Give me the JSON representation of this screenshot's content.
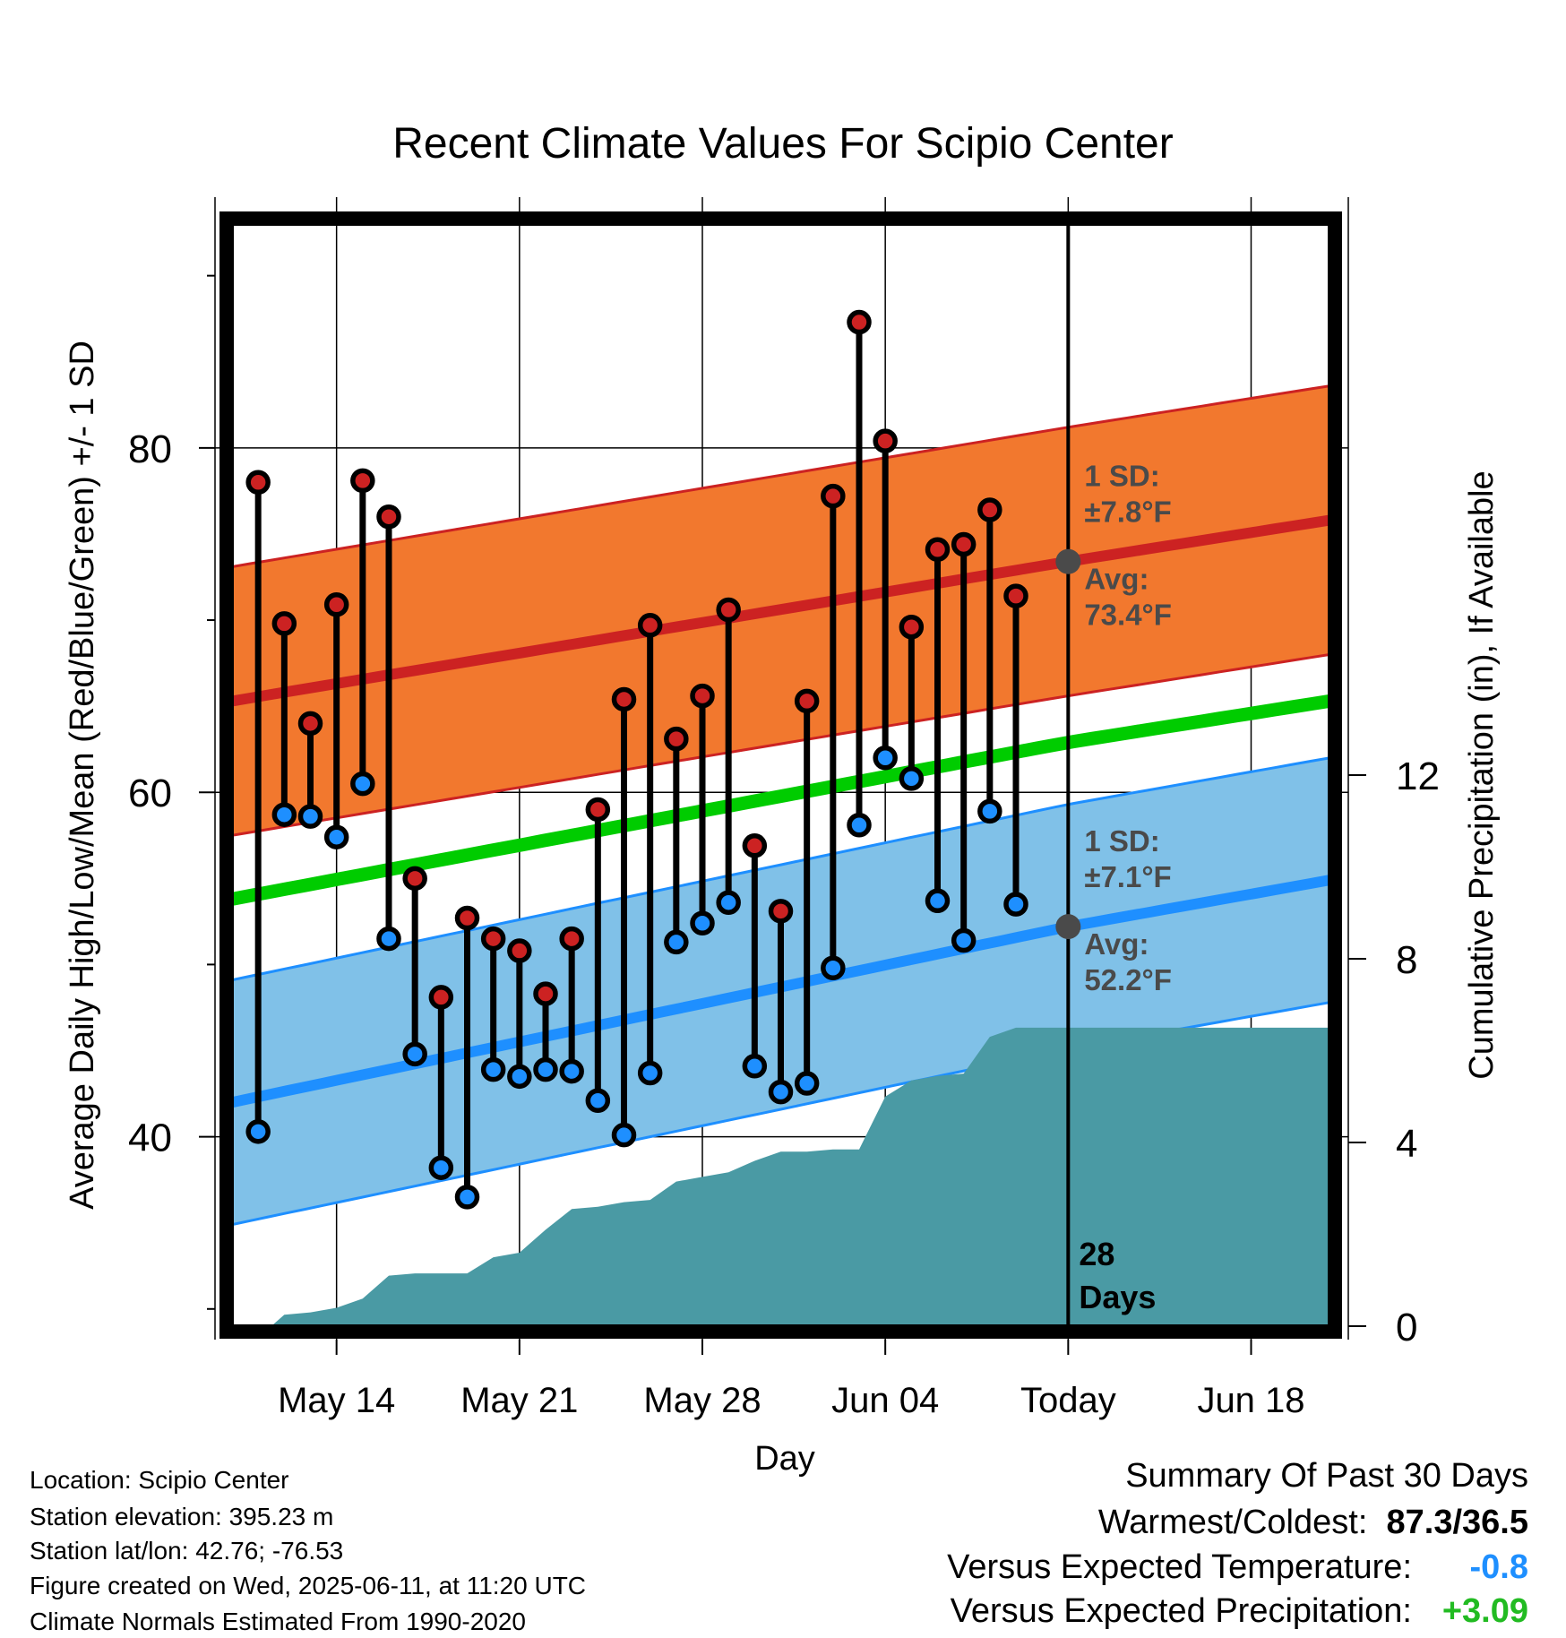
{
  "chart_data": {
    "type": "line",
    "title": "Recent Climate Values For Scipio Center",
    "xlabel": "Day",
    "ylabel": "Average Daily High/Low/Mean (Red/Blue/Green) +/- 1 SD",
    "y2label": "Cumulative Precipitation (in), If Available",
    "x_range": [
      "2025-05-10",
      "2025-06-21"
    ],
    "ylim": [
      29,
      93
    ],
    "y2lim": [
      0,
      24
    ],
    "yticks": [
      40,
      60,
      80
    ],
    "y2ticks": [
      0,
      4,
      8,
      12
    ],
    "xtick_dates": [
      "2025-05-14",
      "2025-05-21",
      "2025-05-28",
      "2025-06-04",
      "2025-06-11",
      "2025-06-18"
    ],
    "xtick_labels": [
      "May 14",
      "May 21",
      "May 28",
      "Jun 04",
      "Today",
      "Jun 18"
    ],
    "today_date": "2025-06-11",
    "today_label": "28\nDays",
    "normals": {
      "high_mean": [
        {
          "x": "2025-05-10",
          "y": 65.3
        },
        {
          "x": "2025-06-11",
          "y": 73.4
        },
        {
          "x": "2025-06-21",
          "y": 75.8
        }
      ],
      "high_sd": 7.8,
      "low_mean": [
        {
          "x": "2025-05-10",
          "y": 42.0
        },
        {
          "x": "2025-06-11",
          "y": 52.2
        },
        {
          "x": "2025-06-21",
          "y": 54.9
        }
      ],
      "low_sd": 7.1,
      "mean": [
        {
          "x": "2025-05-10",
          "y": 53.8
        },
        {
          "x": "2025-06-11",
          "y": 62.9
        },
        {
          "x": "2025-06-21",
          "y": 65.3
        }
      ]
    },
    "annotations": {
      "high": {
        "sd_label": "1 SD:",
        "sd_value": "±7.8°F",
        "avg_label": "Avg:",
        "avg_value": "73.4°F"
      },
      "low": {
        "sd_label": "1 SD:",
        "sd_value": "±7.1°F",
        "avg_label": "Avg:",
        "avg_value": "52.2°F"
      }
    },
    "series": [
      {
        "name": "High",
        "color": "#cc2222",
        "points": [
          {
            "x": "2025-05-11",
            "y": 78.0
          },
          {
            "x": "2025-05-12",
            "y": 69.8
          },
          {
            "x": "2025-05-13",
            "y": 64.0
          },
          {
            "x": "2025-05-14",
            "y": 70.9
          },
          {
            "x": "2025-05-15",
            "y": 78.1
          },
          {
            "x": "2025-05-16",
            "y": 76.0
          },
          {
            "x": "2025-05-17",
            "y": 55.0
          },
          {
            "x": "2025-05-18",
            "y": 48.1
          },
          {
            "x": "2025-05-19",
            "y": 52.7
          },
          {
            "x": "2025-05-20",
            "y": 51.5
          },
          {
            "x": "2025-05-21",
            "y": 50.8
          },
          {
            "x": "2025-05-22",
            "y": 48.3
          },
          {
            "x": "2025-05-23",
            "y": 51.5
          },
          {
            "x": "2025-05-24",
            "y": 59.0
          },
          {
            "x": "2025-05-25",
            "y": 65.4
          },
          {
            "x": "2025-05-26",
            "y": 69.7
          },
          {
            "x": "2025-05-27",
            "y": 63.1
          },
          {
            "x": "2025-05-28",
            "y": 65.6
          },
          {
            "x": "2025-05-29",
            "y": 70.6
          },
          {
            "x": "2025-05-30",
            "y": 56.9
          },
          {
            "x": "2025-05-31",
            "y": 53.1
          },
          {
            "x": "2025-06-01",
            "y": 65.3
          },
          {
            "x": "2025-06-02",
            "y": 77.2
          },
          {
            "x": "2025-06-03",
            "y": 87.3
          },
          {
            "x": "2025-06-04",
            "y": 80.4
          },
          {
            "x": "2025-06-05",
            "y": 69.6
          },
          {
            "x": "2025-06-06",
            "y": 74.1
          },
          {
            "x": "2025-06-07",
            "y": 74.4
          },
          {
            "x": "2025-06-08",
            "y": 76.4
          },
          {
            "x": "2025-06-09",
            "y": 71.4
          }
        ]
      },
      {
        "name": "Low",
        "color": "#1e8fff",
        "points": [
          {
            "x": "2025-05-11",
            "y": 40.3
          },
          {
            "x": "2025-05-12",
            "y": 58.7
          },
          {
            "x": "2025-05-13",
            "y": 58.6
          },
          {
            "x": "2025-05-14",
            "y": 57.4
          },
          {
            "x": "2025-05-15",
            "y": 60.5
          },
          {
            "x": "2025-05-16",
            "y": 51.5
          },
          {
            "x": "2025-05-17",
            "y": 44.8
          },
          {
            "x": "2025-05-18",
            "y": 38.2
          },
          {
            "x": "2025-05-19",
            "y": 36.5
          },
          {
            "x": "2025-05-20",
            "y": 43.9
          },
          {
            "x": "2025-05-21",
            "y": 43.5
          },
          {
            "x": "2025-05-22",
            "y": 43.9
          },
          {
            "x": "2025-05-23",
            "y": 43.8
          },
          {
            "x": "2025-05-24",
            "y": 42.1
          },
          {
            "x": "2025-05-25",
            "y": 40.1
          },
          {
            "x": "2025-05-26",
            "y": 43.7
          },
          {
            "x": "2025-05-27",
            "y": 51.3
          },
          {
            "x": "2025-05-28",
            "y": 52.4
          },
          {
            "x": "2025-05-29",
            "y": 53.6
          },
          {
            "x": "2025-05-30",
            "y": 44.1
          },
          {
            "x": "2025-05-31",
            "y": 42.6
          },
          {
            "x": "2025-06-01",
            "y": 43.1
          },
          {
            "x": "2025-06-02",
            "y": 49.8
          },
          {
            "x": "2025-06-03",
            "y": 58.1
          },
          {
            "x": "2025-06-04",
            "y": 62.0
          },
          {
            "x": "2025-06-05",
            "y": 60.8
          },
          {
            "x": "2025-06-06",
            "y": 53.7
          },
          {
            "x": "2025-06-07",
            "y": 51.4
          },
          {
            "x": "2025-06-08",
            "y": 58.9
          },
          {
            "x": "2025-06-09",
            "y": 53.5
          }
        ]
      }
    ],
    "precipitation": {
      "color": "#4a9aa4",
      "points": [
        {
          "x": "2025-05-11",
          "y": 0.0
        },
        {
          "x": "2025-05-11.5",
          "y": 0.0
        },
        {
          "x": "2025-05-12",
          "y": 0.25
        },
        {
          "x": "2025-05-13",
          "y": 0.3
        },
        {
          "x": "2025-05-14",
          "y": 0.4
        },
        {
          "x": "2025-05-15",
          "y": 0.6
        },
        {
          "x": "2025-05-16",
          "y": 1.1
        },
        {
          "x": "2025-05-17",
          "y": 1.15
        },
        {
          "x": "2025-05-18",
          "y": 1.15
        },
        {
          "x": "2025-05-19",
          "y": 1.15
        },
        {
          "x": "2025-05-20",
          "y": 1.5
        },
        {
          "x": "2025-05-21",
          "y": 1.6
        },
        {
          "x": "2025-05-22",
          "y": 2.1
        },
        {
          "x": "2025-05-23",
          "y": 2.55
        },
        {
          "x": "2025-05-24",
          "y": 2.6
        },
        {
          "x": "2025-05-25",
          "y": 2.7
        },
        {
          "x": "2025-05-26",
          "y": 2.75
        },
        {
          "x": "2025-05-27",
          "y": 3.15
        },
        {
          "x": "2025-05-28",
          "y": 3.25
        },
        {
          "x": "2025-05-29",
          "y": 3.35
        },
        {
          "x": "2025-05-30",
          "y": 3.6
        },
        {
          "x": "2025-05-31",
          "y": 3.8
        },
        {
          "x": "2025-06-01",
          "y": 3.8
        },
        {
          "x": "2025-06-02",
          "y": 3.85
        },
        {
          "x": "2025-06-03",
          "y": 3.85
        },
        {
          "x": "2025-06-04",
          "y": 5.0
        },
        {
          "x": "2025-06-05",
          "y": 5.35
        },
        {
          "x": "2025-06-06",
          "y": 5.45
        },
        {
          "x": "2025-06-07",
          "y": 5.5
        },
        {
          "x": "2025-06-08",
          "y": 6.3
        },
        {
          "x": "2025-06-09",
          "y": 6.5
        },
        {
          "x": "2025-06-21",
          "y": 6.5
        }
      ]
    },
    "colors": {
      "high_band": "#f2782e",
      "high_band_edge": "#cc2222",
      "high_mean_line": "#cc2222",
      "low_band": "#80c1e8",
      "low_band_edge": "#1e8fff",
      "low_mean_line": "#1e8fff",
      "mean_line": "#00cc00",
      "annotation_text": "#4a4a4a",
      "annotation_dot": "#4a4a4a"
    }
  },
  "info": {
    "location": "Location: Scipio Center",
    "elevation": "Station elevation: 395.23 m",
    "latlon": "Station lat/lon: 42.76; -76.53",
    "created": "Figure created on Wed, 2025-06-11, at 11:20 UTC",
    "normals": "Climate Normals Estimated From 1990-2020"
  },
  "summary": {
    "title": "Summary Of Past 30 Days",
    "warmest_label": "Warmest/Coldest:",
    "warmest_value": "87.3/36.5",
    "temp_label": "Versus Expected Temperature:",
    "temp_value": "-0.8",
    "temp_color": "#1e8fff",
    "precip_label": "Versus Expected Precipitation:",
    "precip_value": "+3.09",
    "precip_color": "#22bb22"
  }
}
